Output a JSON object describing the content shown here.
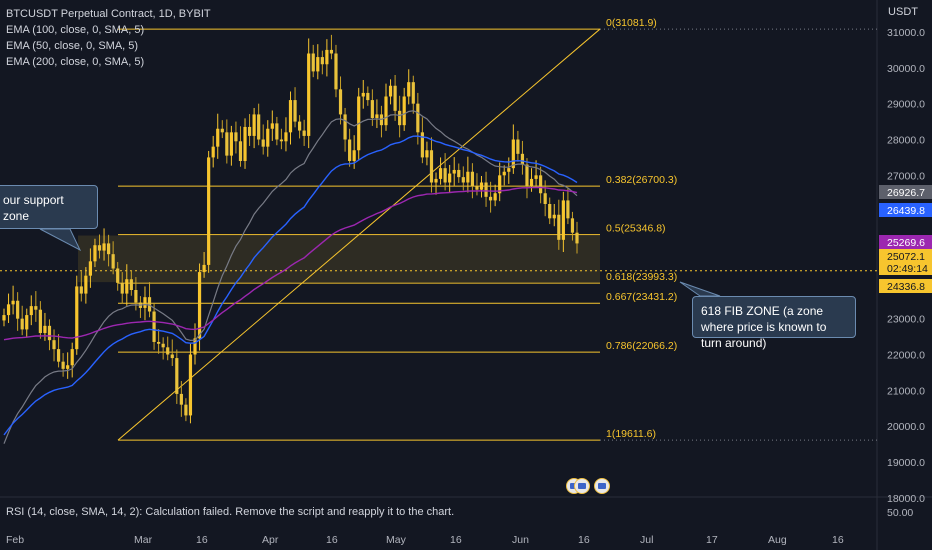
{
  "legend": {
    "symbol": "BTCUSDT Perpetual Contract, 1D, BYBIT",
    "ema1": "EMA (100, close, 0, SMA, 5)",
    "ema2": "EMA (50, close, 0, SMA, 5)",
    "ema3": "EMA (200, close, 0, SMA, 5)"
  },
  "unit_label": "USDT",
  "rsi_label": "RSI (14, close, SMA, 14, 2): Calculation failed. Remove the script and reapply it to the chart.",
  "rsi_value": "50.00",
  "annotations": {
    "support": "our support zone",
    "fib": "618 FIB ZONE (a zone where price is known to turn around)"
  },
  "price_tags": [
    {
      "label": "26926.7",
      "value": 26926.7,
      "color": "#5d606b"
    },
    {
      "label": "26439.8",
      "value": 26439.8,
      "color": "#2962ff"
    },
    {
      "label": "25269.6",
      "value": 25269.6,
      "color": "#9c27b0"
    },
    {
      "label": "25072.1",
      "value": 25072.1,
      "color": "#f7c52e",
      "sub": "02:49:14"
    },
    {
      "label": "24336.8",
      "value": 24336.8,
      "color": "#f7c52e"
    }
  ],
  "colors": {
    "background": "#131722",
    "candle": "#f7c52e",
    "fib": "#f7c52e",
    "ema_gray": "#787b86",
    "ema_blue": "#2962ff",
    "ema_purple": "#9c27b0"
  },
  "chart_data": {
    "type": "candlestick",
    "ylim": [
      17800,
      31800
    ],
    "y_ticks": [
      "31000.0",
      "30000.0",
      "29000.0",
      "28000.0",
      "27000.0",
      "26000.0",
      "25000.0",
      "24000.0",
      "23000.0",
      "22000.0",
      "21000.0",
      "20000.0",
      "19000.0",
      "18000.0"
    ],
    "x_ticks": [
      "Feb",
      "Mar",
      "16",
      "Apr",
      "16",
      "May",
      "16",
      "Jun",
      "16",
      "Jul",
      "17",
      "Aug",
      "16"
    ],
    "fib_levels": [
      {
        "label": "0(31081.9)",
        "value": 31081.9
      },
      {
        "label": "0.382(26700.3)",
        "value": 26700.3
      },
      {
        "label": "0.5(25346.8)",
        "value": 25346.8
      },
      {
        "label": "0.618(23993.3)",
        "value": 23993.3
      },
      {
        "label": "0.667(23431.2)",
        "value": 23431.2
      },
      {
        "label": "0.786(22066.2)",
        "value": 22066.2
      },
      {
        "label": "1(19611.6)",
        "value": 19611.6
      }
    ],
    "support_zone": [
      24020,
      25320
    ],
    "closes": [
      23100,
      23400,
      23500,
      23000,
      22700,
      23100,
      23350,
      23250,
      22600,
      22800,
      22400,
      22150,
      21800,
      21600,
      21700,
      22150,
      23900,
      23700,
      24200,
      24600,
      25050,
      24900,
      25100,
      24800,
      24400,
      24000,
      23700,
      24100,
      23800,
      23450,
      23300,
      23600,
      23200,
      22350,
      22300,
      22200,
      22000,
      21900,
      20900,
      20600,
      20300,
      22000,
      22450,
      24300,
      24500,
      27500,
      27800,
      28300,
      28200,
      27550,
      28200,
      27950,
      27400,
      28350,
      28100,
      28700,
      28000,
      27800,
      28300,
      28450,
      28000,
      27950,
      28200,
      29100,
      28500,
      28250,
      28100,
      30400,
      29900,
      30300,
      30100,
      30500,
      30400,
      29400,
      28700,
      28000,
      27400,
      27700,
      29200,
      29300,
      29100,
      28600,
      28700,
      28400,
      29200,
      29500,
      28800,
      28400,
      29200,
      29600,
      29000,
      28200,
      27500,
      27700,
      26800,
      26900,
      27200,
      26800,
      27050,
      27150,
      26950,
      26800,
      27100,
      26700,
      26600,
      26800,
      26400,
      26300,
      26500,
      27000,
      27100,
      27200,
      28000,
      27600,
      27300,
      26700,
      26900,
      27000,
      26500,
      26200,
      25800,
      25900,
      25200,
      26300,
      25800,
      25400,
      25100
    ],
    "ema_gray_start": 19200,
    "ema_blue_start": 19600,
    "ema_purple_start": 22400
  }
}
